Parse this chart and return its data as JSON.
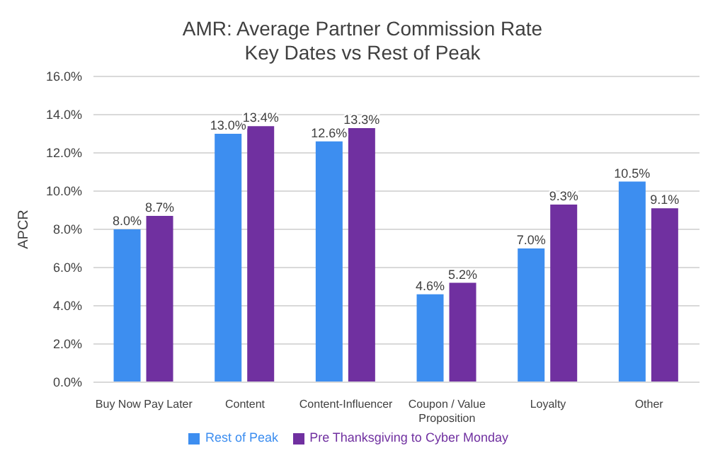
{
  "chart_data": {
    "type": "bar",
    "title": "AMR: Average Partner Commission Rate",
    "subtitle": "Key Dates vs Rest of Peak",
    "ylabel": "APCR",
    "categories": [
      "Buy Now Pay Later",
      "Content",
      "Content-Influencer",
      "Coupon / Value Proposition",
      "Loyalty",
      "Other"
    ],
    "series": [
      {
        "name": "Rest of Peak",
        "color": "#3d8ef0",
        "values": [
          8.0,
          13.0,
          12.6,
          4.6,
          7.0,
          10.5
        ],
        "value_labels": [
          "8.0%",
          "13.0%",
          "12.6%",
          "4.6%",
          "7.0%",
          "10.5%"
        ]
      },
      {
        "name": "Pre Thanksgiving to Cyber Monday",
        "color": "#7030a0",
        "values": [
          8.7,
          13.4,
          13.3,
          5.2,
          9.3,
          9.1
        ],
        "value_labels": [
          "8.7%",
          "13.4%",
          "13.3%",
          "5.2%",
          "9.3%",
          "9.1%"
        ]
      }
    ],
    "ylim": [
      0,
      16
    ],
    "yticks": [
      {
        "value": 0,
        "label": "0.0%"
      },
      {
        "value": 2,
        "label": "2.0%"
      },
      {
        "value": 4,
        "label": "4.0%"
      },
      {
        "value": 6,
        "label": "6.0%"
      },
      {
        "value": 8,
        "label": "8.0%"
      },
      {
        "value": 10,
        "label": "10.0%"
      },
      {
        "value": 12,
        "label": "12.0%"
      },
      {
        "value": 14,
        "label": "14.0%"
      },
      {
        "value": 16,
        "label": "16.0%"
      }
    ],
    "grid": "y",
    "legend": "bottom"
  }
}
